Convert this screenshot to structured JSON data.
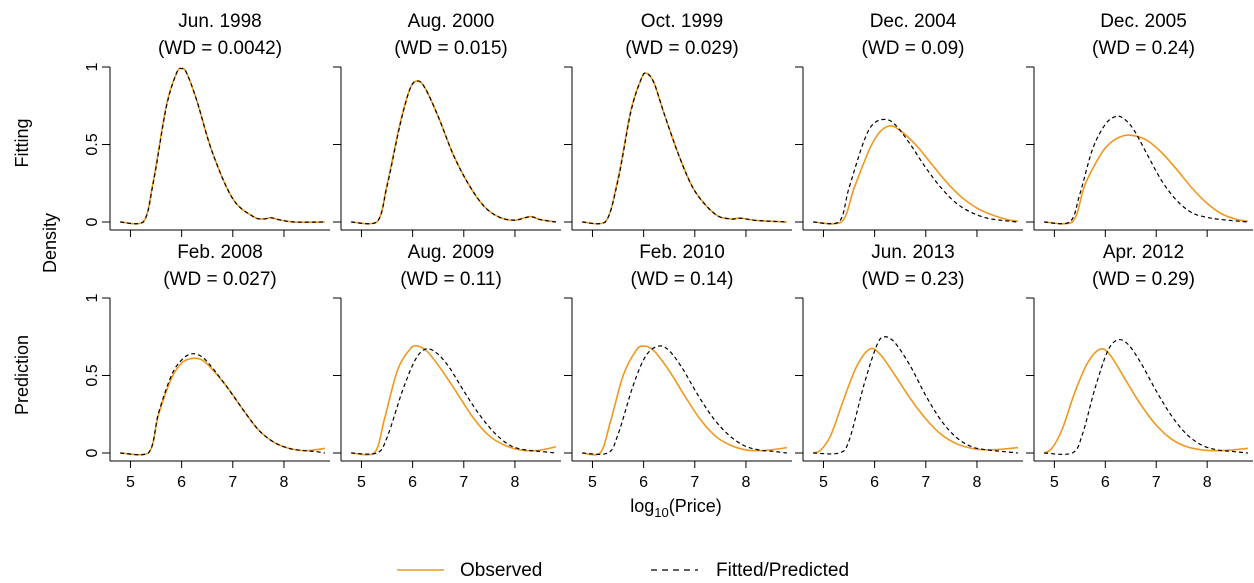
{
  "chart_data": {
    "type": "line",
    "layout": "2x5 grid of density panels",
    "x_label": "log",
    "x_label_sub": "10",
    "x_label_tail": "(Price)",
    "y_label": "Density",
    "row_labels": [
      "Fitting",
      "Prediction"
    ],
    "xlim": [
      4.6,
      8.9
    ],
    "ylim": [
      0,
      1
    ],
    "x_ticks": [
      5,
      6,
      7,
      8
    ],
    "y_ticks": [
      0,
      0.5,
      1
    ],
    "y_tick_labels": [
      "0",
      "0.5",
      "1"
    ],
    "legend_position": "bottom-center",
    "series_styles": {
      "observed": {
        "label": "Observed",
        "color": "#F0981E",
        "dash": "solid"
      },
      "fitted": {
        "label": "Fitted/Predicted",
        "color": "#000000",
        "dash": "dashed"
      }
    },
    "panels": [
      {
        "row": 0,
        "col": 0,
        "title": "Jun. 1998",
        "wd": "(WD = 0.0042)",
        "observed": {
          "x": [
            4.8,
            5.25,
            5.45,
            5.7,
            5.9,
            6.0,
            6.1,
            6.3,
            6.6,
            7.0,
            7.4,
            7.6,
            7.75,
            7.9,
            8.2,
            8.8
          ],
          "y": [
            0,
            0,
            0.27,
            0.75,
            0.96,
            0.99,
            0.96,
            0.78,
            0.45,
            0.15,
            0.035,
            0.02,
            0.028,
            0.015,
            0,
            0
          ]
        },
        "fitted": {
          "x": [
            4.8,
            5.25,
            5.45,
            5.7,
            5.9,
            6.0,
            6.1,
            6.3,
            6.6,
            7.0,
            7.4,
            7.6,
            7.75,
            7.9,
            8.2,
            8.8
          ],
          "y": [
            0,
            0,
            0.26,
            0.74,
            0.96,
            0.99,
            0.96,
            0.78,
            0.45,
            0.15,
            0.035,
            0.02,
            0.027,
            0.015,
            0,
            0
          ]
        }
      },
      {
        "row": 0,
        "col": 1,
        "title": "Aug. 2000",
        "wd": "(WD = 0.015)",
        "observed": {
          "x": [
            4.8,
            5.3,
            5.5,
            5.75,
            5.95,
            6.1,
            6.25,
            6.5,
            6.8,
            7.1,
            7.4,
            7.7,
            8.0,
            8.3,
            8.5,
            8.8
          ],
          "y": [
            0,
            0,
            0.24,
            0.63,
            0.86,
            0.91,
            0.86,
            0.68,
            0.43,
            0.24,
            0.1,
            0.03,
            0.012,
            0.035,
            0.015,
            0
          ]
        },
        "fitted": {
          "x": [
            4.8,
            5.3,
            5.5,
            5.75,
            5.95,
            6.1,
            6.25,
            6.5,
            6.8,
            7.1,
            7.4,
            7.7,
            8.0,
            8.3,
            8.5,
            8.8
          ],
          "y": [
            0,
            0,
            0.23,
            0.62,
            0.86,
            0.91,
            0.86,
            0.68,
            0.43,
            0.24,
            0.1,
            0.03,
            0.012,
            0.034,
            0.015,
            0
          ]
        }
      },
      {
        "row": 0,
        "col": 2,
        "title": "Oct. 1999",
        "wd": "(WD = 0.029)",
        "observed": {
          "x": [
            4.8,
            5.25,
            5.5,
            5.75,
            5.95,
            6.05,
            6.2,
            6.4,
            6.7,
            7.0,
            7.4,
            7.7,
            7.9,
            8.2,
            8.8
          ],
          "y": [
            0,
            0,
            0.28,
            0.72,
            0.92,
            0.96,
            0.9,
            0.7,
            0.42,
            0.2,
            0.05,
            0.02,
            0.025,
            0.01,
            0
          ]
        },
        "fitted": {
          "x": [
            4.8,
            5.25,
            5.5,
            5.75,
            5.95,
            6.05,
            6.2,
            6.4,
            6.7,
            7.0,
            7.4,
            7.7,
            7.9,
            8.2,
            8.8
          ],
          "y": [
            0,
            0,
            0.27,
            0.71,
            0.92,
            0.96,
            0.9,
            0.7,
            0.42,
            0.2,
            0.05,
            0.02,
            0.024,
            0.01,
            0
          ]
        }
      },
      {
        "row": 0,
        "col": 3,
        "title": "Dec. 2004",
        "wd": "(WD = 0.09)",
        "observed": {
          "x": [
            4.8,
            5.35,
            5.6,
            5.9,
            6.1,
            6.3,
            6.5,
            6.8,
            7.1,
            7.4,
            7.7,
            8.0,
            8.3,
            8.6,
            8.8
          ],
          "y": [
            0,
            0,
            0.22,
            0.47,
            0.58,
            0.62,
            0.59,
            0.5,
            0.38,
            0.26,
            0.16,
            0.09,
            0.045,
            0.015,
            0.005
          ]
        },
        "fitted": {
          "x": [
            4.8,
            5.3,
            5.5,
            5.8,
            6.0,
            6.25,
            6.45,
            6.7,
            7.0,
            7.3,
            7.6,
            7.9,
            8.2,
            8.5,
            8.8
          ],
          "y": [
            0,
            0,
            0.22,
            0.53,
            0.64,
            0.66,
            0.61,
            0.5,
            0.35,
            0.22,
            0.12,
            0.06,
            0.025,
            0.01,
            0
          ]
        }
      },
      {
        "row": 0,
        "col": 4,
        "title": "Dec. 2005",
        "wd": "(WD = 0.24)",
        "observed": {
          "x": [
            4.8,
            5.35,
            5.6,
            5.9,
            6.1,
            6.3,
            6.5,
            6.8,
            7.1,
            7.4,
            7.7,
            8.0,
            8.3,
            8.6,
            8.8
          ],
          "y": [
            0,
            0,
            0.24,
            0.43,
            0.51,
            0.55,
            0.56,
            0.53,
            0.45,
            0.34,
            0.22,
            0.12,
            0.05,
            0.015,
            0.005
          ]
        },
        "fitted": {
          "x": [
            4.8,
            5.3,
            5.5,
            5.75,
            6.0,
            6.2,
            6.35,
            6.55,
            6.8,
            7.1,
            7.4,
            7.7,
            8.0,
            8.3,
            8.8
          ],
          "y": [
            0,
            0,
            0.18,
            0.47,
            0.63,
            0.68,
            0.67,
            0.6,
            0.45,
            0.27,
            0.14,
            0.06,
            0.03,
            0.015,
            0
          ]
        }
      },
      {
        "row": 1,
        "col": 0,
        "title": "Feb. 2008",
        "wd": "(WD = 0.027)",
        "observed": {
          "x": [
            4.8,
            5.35,
            5.55,
            5.8,
            6.0,
            6.2,
            6.4,
            6.6,
            6.9,
            7.2,
            7.5,
            7.8,
            8.1,
            8.4,
            8.6,
            8.8
          ],
          "y": [
            0,
            0,
            0.25,
            0.48,
            0.58,
            0.61,
            0.6,
            0.54,
            0.42,
            0.28,
            0.15,
            0.07,
            0.03,
            0.015,
            0.02,
            0.03
          ]
        },
        "fitted": {
          "x": [
            4.8,
            5.35,
            5.55,
            5.8,
            6.0,
            6.2,
            6.4,
            6.6,
            6.9,
            7.2,
            7.5,
            7.8,
            8.1,
            8.4,
            8.6,
            8.8
          ],
          "y": [
            0,
            0,
            0.26,
            0.5,
            0.6,
            0.64,
            0.62,
            0.55,
            0.42,
            0.28,
            0.15,
            0.07,
            0.03,
            0.015,
            0.01,
            0
          ]
        }
      },
      {
        "row": 1,
        "col": 1,
        "title": "Aug. 2009",
        "wd": "(WD = 0.11)",
        "observed": {
          "x": [
            4.8,
            5.25,
            5.45,
            5.7,
            5.95,
            6.1,
            6.3,
            6.6,
            6.9,
            7.2,
            7.5,
            7.8,
            8.1,
            8.4,
            8.6,
            8.8
          ],
          "y": [
            0,
            0,
            0.22,
            0.53,
            0.67,
            0.69,
            0.65,
            0.52,
            0.37,
            0.22,
            0.11,
            0.05,
            0.02,
            0.015,
            0.025,
            0.04
          ]
        },
        "fitted": {
          "x": [
            4.8,
            5.3,
            5.5,
            5.8,
            6.05,
            6.25,
            6.45,
            6.7,
            7.0,
            7.3,
            7.6,
            7.9,
            8.2,
            8.5,
            8.8
          ],
          "y": [
            0,
            0,
            0.1,
            0.4,
            0.6,
            0.67,
            0.65,
            0.56,
            0.4,
            0.25,
            0.13,
            0.05,
            0.02,
            0.01,
            0
          ]
        }
      },
      {
        "row": 1,
        "col": 2,
        "title": "Feb. 2010",
        "wd": "(WD = 0.14)",
        "observed": {
          "x": [
            4.8,
            5.15,
            5.35,
            5.6,
            5.85,
            6.0,
            6.2,
            6.5,
            6.8,
            7.1,
            7.4,
            7.7,
            8.0,
            8.3,
            8.6,
            8.8
          ],
          "y": [
            0,
            0,
            0.2,
            0.5,
            0.66,
            0.69,
            0.66,
            0.53,
            0.37,
            0.22,
            0.11,
            0.05,
            0.02,
            0.015,
            0.025,
            0.035
          ]
        },
        "fitted": {
          "x": [
            4.8,
            5.3,
            5.5,
            5.8,
            6.05,
            6.3,
            6.5,
            6.75,
            7.05,
            7.35,
            7.65,
            7.95,
            8.25,
            8.55,
            8.8
          ],
          "y": [
            0,
            0,
            0.12,
            0.44,
            0.63,
            0.69,
            0.66,
            0.55,
            0.38,
            0.23,
            0.12,
            0.05,
            0.02,
            0.01,
            0
          ]
        }
      },
      {
        "row": 1,
        "col": 3,
        "title": "Jun. 2013",
        "wd": "(WD = 0.23)",
        "observed": {
          "x": [
            4.8,
            4.95,
            5.15,
            5.4,
            5.65,
            5.9,
            6.1,
            6.4,
            6.7,
            7.0,
            7.3,
            7.6,
            7.9,
            8.2,
            8.5,
            8.8
          ],
          "y": [
            0,
            0.02,
            0.12,
            0.35,
            0.56,
            0.67,
            0.64,
            0.5,
            0.35,
            0.22,
            0.12,
            0.06,
            0.03,
            0.02,
            0.025,
            0.035
          ]
        },
        "fitted": {
          "x": [
            4.8,
            5.3,
            5.5,
            5.8,
            6.05,
            6.2,
            6.4,
            6.7,
            7.0,
            7.3,
            7.6,
            7.9,
            8.2,
            8.5,
            8.8
          ],
          "y": [
            0,
            0,
            0.08,
            0.45,
            0.7,
            0.75,
            0.71,
            0.56,
            0.37,
            0.21,
            0.1,
            0.04,
            0.02,
            0.01,
            0
          ]
        }
      },
      {
        "row": 1,
        "col": 4,
        "title": "Apr. 2012",
        "wd": "(WD = 0.29)",
        "observed": {
          "x": [
            4.8,
            4.95,
            5.15,
            5.4,
            5.65,
            5.9,
            6.1,
            6.4,
            6.7,
            7.0,
            7.3,
            7.6,
            7.9,
            8.2,
            8.5,
            8.8
          ],
          "y": [
            0,
            0.03,
            0.15,
            0.39,
            0.58,
            0.67,
            0.63,
            0.47,
            0.31,
            0.18,
            0.09,
            0.04,
            0.02,
            0.015,
            0.02,
            0.03
          ]
        },
        "fitted": {
          "x": [
            4.8,
            5.35,
            5.55,
            5.8,
            6.05,
            6.25,
            6.45,
            6.7,
            7.0,
            7.3,
            7.6,
            7.9,
            8.2,
            8.5,
            8.8
          ],
          "y": [
            0,
            0,
            0.12,
            0.42,
            0.66,
            0.73,
            0.7,
            0.58,
            0.4,
            0.24,
            0.12,
            0.05,
            0.02,
            0.01,
            0
          ]
        }
      }
    ]
  }
}
